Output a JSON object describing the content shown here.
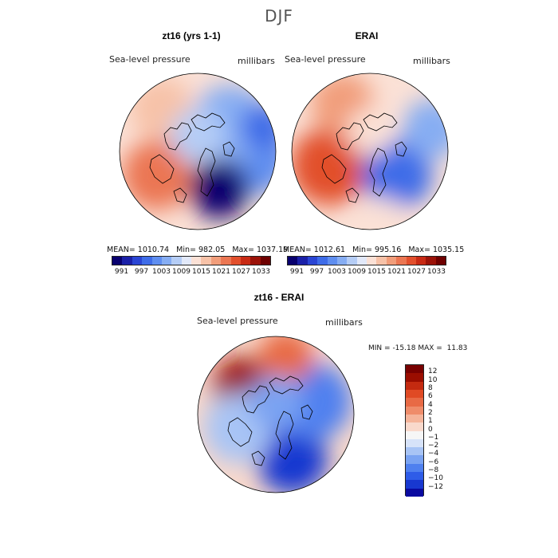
{
  "title": "DJF",
  "colors": {
    "abs_palette": [
      "#08006e",
      "#1a20a8",
      "#2a45d4",
      "#3e6ce8",
      "#5f8ef0",
      "#86adf3",
      "#b5cdf6",
      "#e2e9fa",
      "#fbe1d6",
      "#f7c2a8",
      "#f19d7a",
      "#eb7652",
      "#e24f2c",
      "#c82a14",
      "#9b1208",
      "#6e0000"
    ],
    "diff_palette": [
      "#0a0aa0",
      "#1838d0",
      "#2e5ce8",
      "#4f80ef",
      "#7aa3f2",
      "#a8c4f5",
      "#d7e3f9",
      "#f6f6f6",
      "#f9d9cc",
      "#f5b49a",
      "#ef8c6a",
      "#e86a45",
      "#e04a24",
      "#c42a10",
      "#9a0d00",
      "#780000"
    ],
    "coast": "#000000"
  },
  "panels": [
    {
      "name": "model",
      "title": "zt16 (yrs 1-1)",
      "variable": "Sea-level pressure",
      "units": "millibars",
      "stats": {
        "mean_label": "MEAN=",
        "mean": "1010.74",
        "min_label": "Min=",
        "min": "982.05",
        "max_label": "Max=",
        "max": "1037.19"
      },
      "colorbar_ticks": [
        "991",
        "997",
        "1003",
        "1009",
        "1015",
        "1021",
        "1027",
        "1033"
      ],
      "field_blobs": [
        {
          "lon": 210,
          "r": 0.6,
          "level": 11,
          "size": 0.45
        },
        {
          "lon": 350,
          "r": 0.75,
          "level": 4,
          "size": 0.42
        },
        {
          "lon": 40,
          "r": 0.55,
          "level": 5,
          "size": 0.5
        },
        {
          "lon": 300,
          "r": 0.55,
          "level": 0,
          "size": 0.38
        },
        {
          "lon": 130,
          "r": 0.72,
          "level": 9,
          "size": 0.4
        },
        {
          "lon": 90,
          "r": 0.2,
          "level": 6,
          "size": 0.35
        },
        {
          "lon": 20,
          "r": 0.9,
          "level": 3,
          "size": 0.3
        }
      ]
    },
    {
      "name": "erai",
      "title": "ERAI",
      "variable": "Sea-level pressure",
      "units": "millibars",
      "stats": {
        "mean_label": "MEAN=",
        "mean": "1012.61",
        "min_label": "Min=",
        "min": "995.16",
        "max_label": "Max=",
        "max": "1035.15"
      },
      "colorbar_ticks": [
        "991",
        "997",
        "1003",
        "1009",
        "1015",
        "1021",
        "1027",
        "1033"
      ],
      "field_blobs": [
        {
          "lon": 200,
          "r": 0.55,
          "level": 12,
          "size": 0.5
        },
        {
          "lon": 120,
          "r": 0.7,
          "level": 10,
          "size": 0.4
        },
        {
          "lon": 320,
          "r": 0.45,
          "level": 3,
          "size": 0.45
        },
        {
          "lon": 20,
          "r": 0.85,
          "level": 5,
          "size": 0.38
        },
        {
          "lon": 90,
          "r": 0.25,
          "level": 8,
          "size": 0.3
        },
        {
          "lon": 280,
          "r": 0.9,
          "level": 8,
          "size": 0.3
        }
      ]
    },
    {
      "name": "difference",
      "title": "zt16 - ERAI",
      "variable": "Sea-level pressure",
      "units": "millibars",
      "stats": {
        "min_label": "MIN =",
        "min": "-15.18",
        "max_label": "MAX =",
        "max": "11.83"
      },
      "colorbar_ticks": [
        "12",
        "10",
        "8",
        "6",
        "4",
        "2",
        "1",
        "0",
        "−1",
        "−2",
        "−4",
        "−6",
        "−8",
        "−10",
        "−12"
      ],
      "field_blobs": [
        {
          "lon": 140,
          "r": 0.55,
          "level": 14,
          "size": 0.38
        },
        {
          "lon": 290,
          "r": 0.6,
          "level": 1,
          "size": 0.45
        },
        {
          "lon": 20,
          "r": 0.5,
          "level": 3,
          "size": 0.5
        },
        {
          "lon": 80,
          "r": 0.75,
          "level": 11,
          "size": 0.35
        },
        {
          "lon": 200,
          "r": 0.5,
          "level": 5,
          "size": 0.45
        },
        {
          "lon": 90,
          "r": 0.15,
          "level": 4,
          "size": 0.35
        }
      ]
    }
  ]
}
